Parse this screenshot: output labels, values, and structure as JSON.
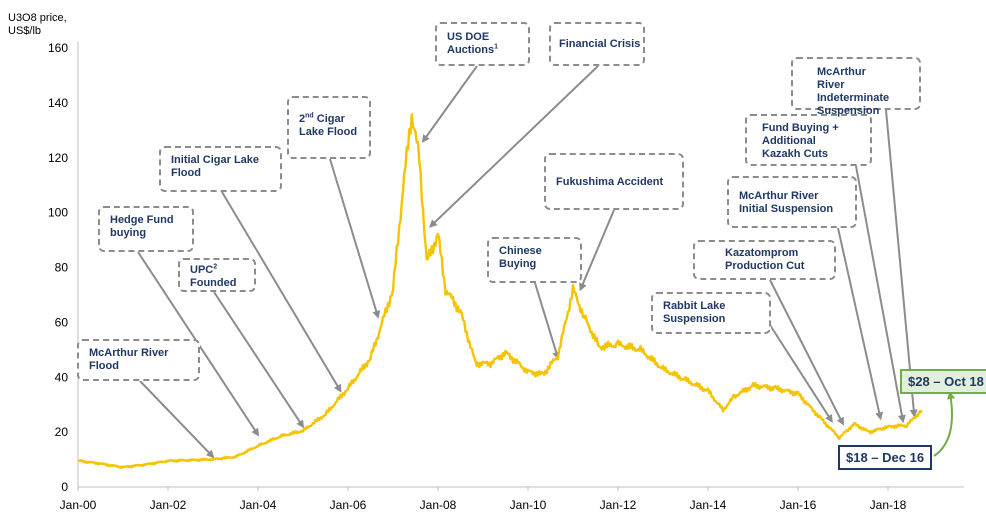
{
  "chart_data": {
    "type": "line",
    "ylabel": [
      "U3O8 price,",
      "US$/lb"
    ],
    "ylim": [
      0,
      160
    ],
    "yticks": [
      0,
      20,
      40,
      60,
      80,
      100,
      120,
      140,
      160
    ],
    "x_tick_labels": [
      "Jan-00",
      "Jan-02",
      "Jan-04",
      "Jan-06",
      "Jan-08",
      "Jan-10",
      "Jan-12",
      "Jan-14",
      "Jan-16",
      "Jan-18"
    ],
    "x_tick_dates": [
      "2000-01",
      "2002-01",
      "2004-01",
      "2006-01",
      "2008-01",
      "2010-01",
      "2012-01",
      "2014-01",
      "2016-01",
      "2018-01"
    ],
    "xlim": [
      "2000-01",
      "2018-12"
    ],
    "grid": false,
    "series": [
      {
        "color": "#f5c300",
        "points": [
          [
            "2000-01",
            9.6
          ],
          [
            "2000-07",
            8.5
          ],
          [
            "2001-01",
            7.2
          ],
          [
            "2001-07",
            8.2
          ],
          [
            "2002-01",
            9.5
          ],
          [
            "2002-07",
            9.8
          ],
          [
            "2003-01",
            10.1
          ],
          [
            "2003-07",
            11.0
          ],
          [
            "2004-01",
            15.0
          ],
          [
            "2004-07",
            18.5
          ],
          [
            "2005-01",
            20.5
          ],
          [
            "2005-07",
            26.5
          ],
          [
            "2006-01",
            36.0
          ],
          [
            "2006-07",
            47.0
          ],
          [
            "2007-01",
            72.0
          ],
          [
            "2007-04",
            113.0
          ],
          [
            "2007-06",
            136.0
          ],
          [
            "2007-08",
            120.0
          ],
          [
            "2007-10",
            82.0
          ],
          [
            "2008-01",
            92.0
          ],
          [
            "2008-03",
            72.0
          ],
          [
            "2008-07",
            64.0
          ],
          [
            "2008-11",
            45.0
          ],
          [
            "2009-03",
            45.0
          ],
          [
            "2009-07",
            49.0
          ],
          [
            "2010-01",
            42.0
          ],
          [
            "2010-05",
            41.0
          ],
          [
            "2010-09",
            48.0
          ],
          [
            "2011-01",
            72.0
          ],
          [
            "2011-04",
            62.0
          ],
          [
            "2011-08",
            51.0
          ],
          [
            "2012-01",
            52.0
          ],
          [
            "2012-07",
            50.0
          ],
          [
            "2013-01",
            43.0
          ],
          [
            "2013-07",
            39.0
          ],
          [
            "2014-01",
            35.0
          ],
          [
            "2014-05",
            28.0
          ],
          [
            "2014-08",
            33.0
          ],
          [
            "2015-01",
            37.0
          ],
          [
            "2015-07",
            36.0
          ],
          [
            "2016-01",
            34.0
          ],
          [
            "2016-07",
            25.0
          ],
          [
            "2016-12",
            18.0
          ],
          [
            "2017-04",
            23.0
          ],
          [
            "2017-08",
            20.0
          ],
          [
            "2018-01",
            22.0
          ],
          [
            "2018-06",
            22.5
          ],
          [
            "2018-10",
            28.0
          ]
        ]
      }
    ],
    "annotations": [
      {
        "label": "McArthur River Flood",
        "target": [
          "2003-01",
          11
        ]
      },
      {
        "label": "Hedge Fund buying",
        "target": [
          "2004-01",
          19
        ]
      },
      {
        "label": "UPC Founded",
        "sup": "2",
        "target": [
          "2005-01",
          22
        ]
      },
      {
        "label": "Initial Cigar Lake Flood",
        "target": [
          "2005-11",
          35
        ]
      },
      {
        "label": "Cigar Lake Flood",
        "prefix": "2",
        "prefix_sup": "nd",
        "target": [
          "2006-09",
          62
        ]
      },
      {
        "label": "US DOE Auctions",
        "sup": "1",
        "target": [
          "2007-09",
          126
        ]
      },
      {
        "label": "Financial Crisis",
        "target": [
          "2007-11",
          95
        ]
      },
      {
        "label": "Chinese Buying",
        "target": [
          "2010-09",
          47
        ]
      },
      {
        "label": "Fukushima Accident",
        "target": [
          "2011-03",
          72
        ]
      },
      {
        "label": "Rabbit Lake Suspension",
        "target": [
          "2016-10",
          24
        ]
      },
      {
        "label": "Kazatomprom Production Cut",
        "target": [
          "2017-01",
          23
        ]
      },
      {
        "label": "McArthur River Initial Suspension",
        "target": [
          "2017-11",
          25
        ]
      },
      {
        "label": "Fund Buying + Additional Kazakh Cuts",
        "target": [
          "2018-05",
          24
        ]
      },
      {
        "label": "McArthur River Indeterminate Suspension",
        "target": [
          "2018-08",
          26
        ]
      }
    ],
    "highlights": [
      {
        "label": "$28 – Oct 18",
        "color": "#70ad47",
        "fill": "#e2efda"
      },
      {
        "label": "$18 – Dec 16",
        "color": "#1f3864",
        "fill": "#ffffff"
      }
    ]
  }
}
